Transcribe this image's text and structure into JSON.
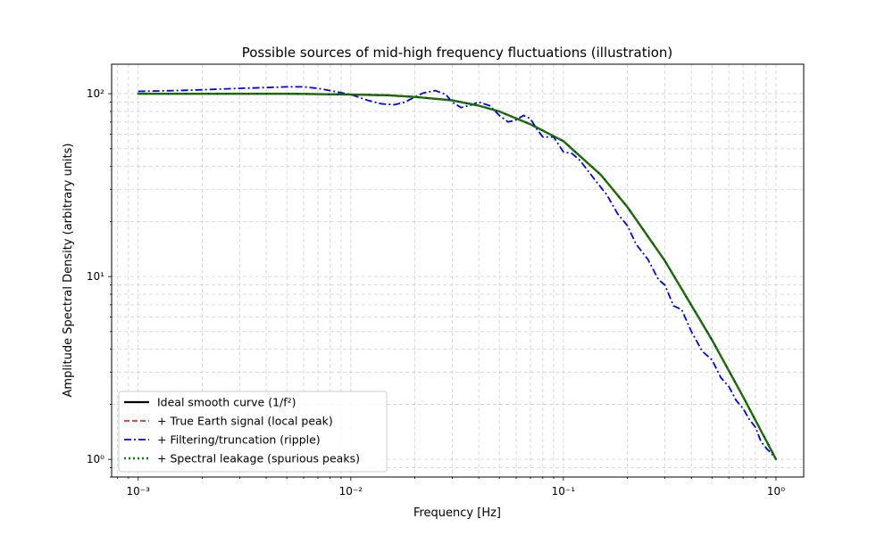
{
  "chart_data": {
    "type": "line",
    "title": "Possible sources of mid-high frequency fluctuations (illustration)",
    "xlabel": "Frequency [Hz]",
    "ylabel": "Amplitude Spectral Density (arbitrary units)",
    "xscale": "log",
    "yscale": "log",
    "xlim": [
      0.00075,
      1.35
    ],
    "ylim": [
      0.8,
      145
    ],
    "x_major_ticks": [
      0.001,
      0.01,
      0.1,
      1
    ],
    "x_tick_labels": [
      "10⁻³",
      "10⁻²",
      "10⁻¹",
      "10⁰"
    ],
    "y_major_ticks": [
      1,
      10,
      100
    ],
    "y_tick_labels": [
      "10⁰",
      "10¹",
      "10²"
    ],
    "grid": true,
    "grid_which": "both",
    "legend_position": "lower-left",
    "series": [
      {
        "name": "Ideal smooth curve (1/f²)",
        "color": "#000000",
        "style": "solid",
        "x": [
          0.001,
          0.002,
          0.005,
          0.01,
          0.015,
          0.02,
          0.03,
          0.04,
          0.05,
          0.07,
          0.1,
          0.15,
          0.2,
          0.3,
          0.5,
          0.7,
          1.0
        ],
        "y": [
          100,
          100,
          100,
          99,
          98,
          96,
          92,
          86,
          80,
          68,
          55,
          36,
          24,
          12.2,
          4.5,
          2.2,
          1.0
        ]
      },
      {
        "name": "+ True Earth signal (local peak)",
        "color": "#ff0000",
        "style": "dashed",
        "x": [
          0.001,
          0.002,
          0.005,
          0.01,
          0.015,
          0.02,
          0.03,
          0.04,
          0.05,
          0.07,
          0.1,
          0.15,
          0.2,
          0.3,
          0.5,
          0.7,
          1.0
        ],
        "y": [
          100,
          100,
          100,
          99,
          98,
          96,
          92,
          86,
          80,
          68,
          55,
          36,
          24,
          12.2,
          4.5,
          2.2,
          1.0
        ]
      },
      {
        "name": "+ Filtering/truncation (ripple)",
        "color": "#0000ff",
        "style": "dashdot",
        "x": [
          0.001,
          0.0015,
          0.002,
          0.003,
          0.004,
          0.005,
          0.006,
          0.007,
          0.008,
          0.01,
          0.012,
          0.014,
          0.016,
          0.018,
          0.02,
          0.022,
          0.025,
          0.028,
          0.03,
          0.033,
          0.036,
          0.04,
          0.045,
          0.05,
          0.055,
          0.06,
          0.065,
          0.07,
          0.075,
          0.08,
          0.09,
          0.1,
          0.11,
          0.12,
          0.14,
          0.16,
          0.18,
          0.2,
          0.22,
          0.25,
          0.28,
          0.3,
          0.33,
          0.36,
          0.4,
          0.45,
          0.5,
          0.55,
          0.6,
          0.65,
          0.7,
          0.75,
          0.8,
          0.85,
          0.9,
          0.95,
          1.0
        ],
        "y": [
          103,
          104,
          105,
          107,
          108,
          109,
          109,
          107,
          104,
          99,
          92,
          88,
          87,
          90,
          96,
          101,
          104,
          99,
          90,
          84,
          86,
          90,
          86,
          76,
          70,
          72,
          76,
          73,
          64,
          58,
          58,
          48,
          47,
          43,
          34,
          28,
          22,
          19,
          15,
          12.4,
          9.6,
          9.0,
          6.9,
          6.6,
          5.0,
          3.9,
          3.5,
          2.8,
          2.5,
          2.1,
          1.9,
          1.65,
          1.5,
          1.25,
          1.15,
          1.08,
          1.0
        ]
      },
      {
        "name": "+ Spectral leakage (spurious peaks)",
        "color": "#008000",
        "style": "dotted",
        "x": [
          0.001,
          0.002,
          0.005,
          0.01,
          0.015,
          0.02,
          0.03,
          0.04,
          0.05,
          0.07,
          0.1,
          0.15,
          0.2,
          0.3,
          0.5,
          0.7,
          1.0
        ],
        "y": [
          100,
          100,
          100,
          99,
          98,
          96,
          92,
          86,
          80,
          68,
          55,
          36,
          24,
          12.2,
          4.5,
          2.2,
          1.0
        ]
      }
    ]
  }
}
